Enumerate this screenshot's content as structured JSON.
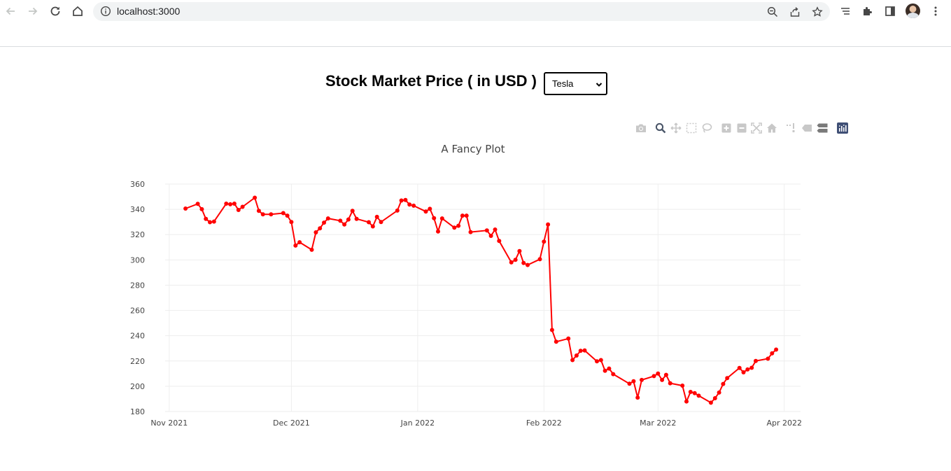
{
  "browser": {
    "url": "localhost:3000",
    "icons": [
      "back-arrow-icon",
      "forward-arrow-icon",
      "reload-icon",
      "home-icon",
      "info-icon",
      "zoom-icon",
      "share-icon",
      "star-icon",
      "tab-search-icon",
      "extensions-icon",
      "side-panel-icon",
      "profile-avatar",
      "more-icon"
    ]
  },
  "header": {
    "title": "Stock Market Price ( in USD )",
    "select_value": "Tesla"
  },
  "modebar": {
    "icons": [
      "camera-icon",
      "zoom-icon",
      "pan-icon",
      "box-select-icon",
      "lasso-icon",
      "zoom-in-icon",
      "zoom-out-icon",
      "autoscale-icon",
      "reset-axes-icon",
      "spike-lines-icon",
      "hover-closest-icon",
      "hover-compare-icon",
      "plotly-logo-icon"
    ]
  },
  "colors": {
    "line": "#ff0000",
    "grid": "#eeeeee",
    "text": "#444444"
  },
  "chart_data": {
    "type": "line",
    "title": "A Fancy Plot",
    "xlabel": "",
    "ylabel": "",
    "ylim": [
      180,
      360
    ],
    "xlim": [
      "2021-10-31",
      "2022-04-05"
    ],
    "x_ticks": [
      {
        "date": "2021-11-01",
        "label": "Nov 2021"
      },
      {
        "date": "2021-12-01",
        "label": "Dec 2021"
      },
      {
        "date": "2022-01-01",
        "label": "Jan 2022"
      },
      {
        "date": "2022-02-01",
        "label": "Feb 2022"
      },
      {
        "date": "2022-03-01",
        "label": "Mar 2022"
      },
      {
        "date": "2022-04-01",
        "label": "Apr 2022"
      }
    ],
    "y_ticks": [
      180,
      200,
      220,
      240,
      260,
      280,
      300,
      320,
      340,
      360
    ],
    "grid": true,
    "series": [
      {
        "x": [
          "2021-11-05",
          "2021-11-08",
          "2021-11-09",
          "2021-11-10",
          "2021-11-11",
          "2021-11-12",
          "2021-11-15",
          "2021-11-16",
          "2021-11-17",
          "2021-11-18",
          "2021-11-19",
          "2021-11-22",
          "2021-11-23",
          "2021-11-24",
          "2021-11-26",
          "2021-11-29",
          "2021-11-30",
          "2021-12-01",
          "2021-12-02",
          "2021-12-03",
          "2021-12-06",
          "2021-12-07",
          "2021-12-08",
          "2021-12-09",
          "2021-12-10",
          "2021-12-13",
          "2021-12-14",
          "2021-12-15",
          "2021-12-16",
          "2021-12-17",
          "2021-12-20",
          "2021-12-21",
          "2021-12-22",
          "2021-12-23",
          "2021-12-27",
          "2021-12-28",
          "2021-12-29",
          "2021-12-30",
          "2021-12-31",
          "2022-01-03",
          "2022-01-04",
          "2022-01-05",
          "2022-01-06",
          "2022-01-07",
          "2022-01-10",
          "2022-01-11",
          "2022-01-12",
          "2022-01-13",
          "2022-01-14",
          "2022-01-18",
          "2022-01-19",
          "2022-01-20",
          "2022-01-21",
          "2022-01-24",
          "2022-01-25",
          "2022-01-26",
          "2022-01-27",
          "2022-01-28",
          "2022-01-31",
          "2022-02-01",
          "2022-02-02",
          "2022-02-03",
          "2022-02-04",
          "2022-02-07",
          "2022-02-08",
          "2022-02-09",
          "2022-02-10",
          "2022-02-11",
          "2022-02-14",
          "2022-02-15",
          "2022-02-16",
          "2022-02-17",
          "2022-02-18",
          "2022-02-22",
          "2022-02-23",
          "2022-02-24",
          "2022-02-25",
          "2022-02-28",
          "2022-03-01",
          "2022-03-02",
          "2022-03-03",
          "2022-03-04",
          "2022-03-07",
          "2022-03-08",
          "2022-03-09",
          "2022-03-10",
          "2022-03-11",
          "2022-03-14",
          "2022-03-15",
          "2022-03-16",
          "2022-03-17",
          "2022-03-18",
          "2022-03-21",
          "2022-03-22",
          "2022-03-23",
          "2022-03-24",
          "2022-03-25",
          "2022-03-28",
          "2022-03-29",
          "2022-03-30"
        ],
        "y": [
          340.6,
          344.3,
          340.1,
          332.5,
          329.8,
          330.3,
          344.5,
          344.0,
          344.5,
          339.5,
          342.0,
          349.2,
          338.8,
          336.0,
          336.1,
          337.0,
          335.0,
          330.0,
          311.3,
          314.0,
          308.0,
          321.8,
          325.0,
          329.5,
          332.8,
          331.0,
          328.0,
          332.0,
          338.8,
          332.5,
          329.8,
          326.5,
          334.0,
          330.0,
          339.0,
          347.0,
          347.4,
          343.8,
          342.9,
          338.3,
          340.4,
          333.0,
          322.5,
          332.8,
          325.5,
          327.0,
          335.0,
          335.0,
          322.0,
          323.3,
          319.0,
          324.0,
          315.0,
          298.0,
          300.0,
          307.0,
          297.5,
          296.0,
          300.5,
          314.5,
          328.0,
          244.5,
          235.2,
          237.7,
          220.7,
          224.3,
          228.0,
          228.3,
          219.7,
          220.7,
          212.3,
          214.0,
          209.6,
          202.0,
          204.0,
          191.0,
          205.0,
          208.0,
          210.0,
          205.0,
          209.0,
          202.4,
          200.5,
          188.0,
          195.5,
          194.5,
          192.5,
          187.0,
          190.5,
          195.0,
          201.8,
          206.5,
          214.5,
          211.0,
          213.3,
          214.6,
          220.0,
          221.8,
          226.0,
          229.0
        ]
      }
    ]
  }
}
